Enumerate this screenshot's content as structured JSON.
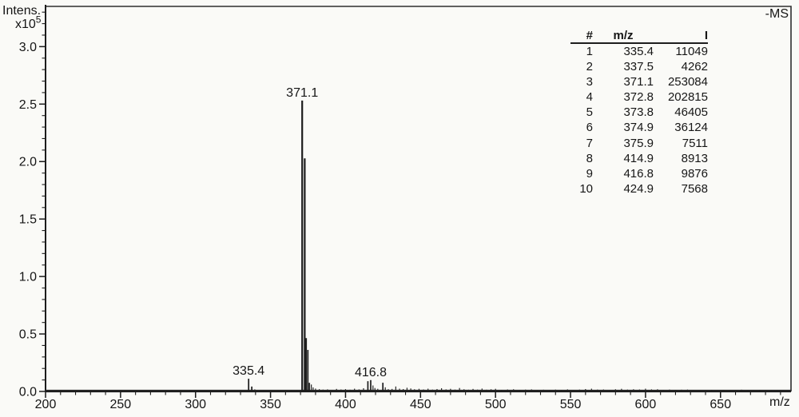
{
  "window": {
    "mode_label": "-MS"
  },
  "axes": {
    "y_title": "Intens.",
    "y_scale_base": "x10",
    "y_scale_exp": "5",
    "x_title": "m/z"
  },
  "peak_table": {
    "headers": [
      "#",
      "m/z",
      "I"
    ],
    "rows": [
      [
        "1",
        "335.4",
        "11049"
      ],
      [
        "2",
        "337.5",
        "4262"
      ],
      [
        "3",
        "371.1",
        "253084"
      ],
      [
        "4",
        "372.8",
        "202815"
      ],
      [
        "5",
        "373.8",
        "46405"
      ],
      [
        "6",
        "374.9",
        "36124"
      ],
      [
        "7",
        "375.9",
        "7511"
      ],
      [
        "8",
        "414.9",
        "8913"
      ],
      [
        "9",
        "416.8",
        "9876"
      ],
      [
        "10",
        "424.9",
        "7568"
      ]
    ]
  },
  "chart_data": {
    "type": "line",
    "subtype": "mass_spectrum_sticks",
    "title": "-MS",
    "xlabel": "m/z",
    "ylabel": "Intens. x10^5",
    "grid": false,
    "legend": "none",
    "xlim": [
      200,
      697
    ],
    "ylim": [
      0,
      335000
    ],
    "x_major_ticks": [
      200,
      250,
      300,
      350,
      400,
      450,
      500,
      550,
      600,
      650
    ],
    "x_minor_tick_step": 10,
    "y_major_ticks_e5": [
      0.0,
      0.5,
      1.0,
      1.5,
      2.0,
      2.5,
      3.0
    ],
    "y_minor_tick_step_e5": 0.1,
    "peaks": [
      {
        "mz": 335.4,
        "i": 11049,
        "label": "335.4"
      },
      {
        "mz": 337.5,
        "i": 4262
      },
      {
        "mz": 371.1,
        "i": 253084,
        "label": "371.1"
      },
      {
        "mz": 372.8,
        "i": 202815
      },
      {
        "mz": 373.8,
        "i": 46405
      },
      {
        "mz": 374.9,
        "i": 36124
      },
      {
        "mz": 375.9,
        "i": 7511
      },
      {
        "mz": 414.9,
        "i": 8913
      },
      {
        "mz": 416.8,
        "i": 9876,
        "label": "416.8"
      },
      {
        "mz": 424.9,
        "i": 7568
      }
    ],
    "noise_peaks": [
      [
        222,
        600
      ],
      [
        231,
        500
      ],
      [
        243,
        700
      ],
      [
        252,
        550
      ],
      [
        262,
        600
      ],
      [
        271,
        900
      ],
      [
        278,
        700
      ],
      [
        284,
        1100
      ],
      [
        290,
        800
      ],
      [
        296,
        1300
      ],
      [
        302,
        900
      ],
      [
        308,
        700
      ],
      [
        316,
        800
      ],
      [
        322,
        900
      ],
      [
        328,
        1000
      ],
      [
        339.5,
        1800
      ],
      [
        341,
        1000
      ],
      [
        345,
        800
      ],
      [
        350,
        700
      ],
      [
        355,
        900
      ],
      [
        360,
        750
      ],
      [
        364,
        800
      ],
      [
        368,
        1000
      ],
      [
        377.2,
        6000
      ],
      [
        378.4,
        3500
      ],
      [
        380,
        2500
      ],
      [
        382.5,
        2000
      ],
      [
        385,
        1600
      ],
      [
        388,
        1800
      ],
      [
        391,
        1400
      ],
      [
        394,
        2200
      ],
      [
        397,
        1700
      ],
      [
        400,
        2000
      ],
      [
        403,
        1500
      ],
      [
        406,
        2400
      ],
      [
        409,
        1800
      ],
      [
        412,
        2800
      ],
      [
        418.3,
        5200
      ],
      [
        419.6,
        3000
      ],
      [
        421.5,
        2300
      ],
      [
        426.5,
        3600
      ],
      [
        428.5,
        2000
      ],
      [
        431,
        2200
      ],
      [
        433.5,
        4300
      ],
      [
        436,
        2400
      ],
      [
        438.5,
        2100
      ],
      [
        441,
        3200
      ],
      [
        443.5,
        2600
      ],
      [
        446,
        1900
      ],
      [
        449,
        2300
      ],
      [
        452,
        1700
      ],
      [
        455,
        2400
      ],
      [
        458,
        1600
      ],
      [
        461,
        2100
      ],
      [
        464,
        2800
      ],
      [
        467,
        1800
      ],
      [
        470,
        2300
      ],
      [
        473,
        1600
      ],
      [
        476,
        3000
      ],
      [
        479,
        1900
      ],
      [
        482,
        1500
      ],
      [
        485,
        2200
      ],
      [
        488,
        1600
      ],
      [
        491,
        2500
      ],
      [
        494,
        1500
      ],
      [
        497,
        1900
      ],
      [
        500,
        2300
      ],
      [
        504,
        1400
      ],
      [
        508,
        1700
      ],
      [
        512,
        1900
      ],
      [
        516,
        1400
      ],
      [
        520,
        1600
      ],
      [
        524,
        1800
      ],
      [
        528,
        1300
      ],
      [
        532,
        1500
      ],
      [
        536,
        1300
      ],
      [
        540,
        1600
      ],
      [
        544,
        1200
      ],
      [
        548,
        1800
      ],
      [
        552,
        1300
      ],
      [
        556,
        1600
      ],
      [
        560,
        2100
      ],
      [
        564,
        2400
      ],
      [
        568,
        1600
      ],
      [
        572,
        1700
      ],
      [
        576,
        1400
      ],
      [
        580,
        1900
      ],
      [
        584,
        2300
      ],
      [
        588,
        1600
      ],
      [
        592,
        1900
      ],
      [
        596,
        1700
      ],
      [
        600,
        2400
      ],
      [
        604,
        1800
      ],
      [
        608,
        1900
      ],
      [
        612,
        1400
      ],
      [
        616,
        1600
      ],
      [
        620,
        1300
      ],
      [
        624,
        1500
      ],
      [
        628,
        1600
      ],
      [
        632,
        1300
      ],
      [
        636,
        1100
      ],
      [
        640,
        1400
      ],
      [
        644,
        1300
      ],
      [
        648,
        1000
      ],
      [
        652,
        1400
      ],
      [
        656,
        1300
      ],
      [
        660,
        1000
      ],
      [
        664,
        1500
      ],
      [
        668,
        1200
      ],
      [
        672,
        900
      ],
      [
        676,
        1300
      ],
      [
        680,
        1100
      ],
      [
        684,
        900
      ],
      [
        688,
        1200
      ],
      [
        692,
        1000
      ]
    ]
  }
}
